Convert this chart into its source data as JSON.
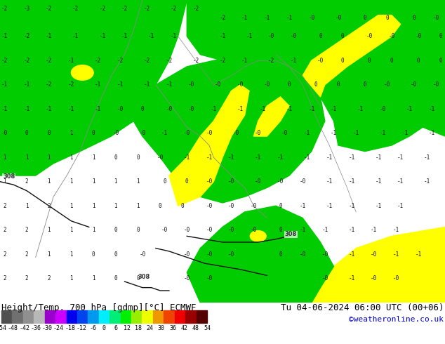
{
  "title_left": "Height/Temp. 700 hPa [gdmp][°C] ECMWF",
  "title_right": "Tu 04-06-2024 06:00 UTC (00+06)",
  "credit": "©weatheronline.co.uk",
  "colorbar_ticks": [
    -54,
    -48,
    -42,
    -36,
    -30,
    -24,
    -18,
    -12,
    -6,
    0,
    6,
    12,
    18,
    24,
    30,
    36,
    42,
    48,
    54
  ],
  "colorbar_colors": [
    "#505050",
    "#707070",
    "#909090",
    "#b8b8b8",
    "#9900cc",
    "#cc00ff",
    "#0000ee",
    "#0044ee",
    "#0099ee",
    "#00eeff",
    "#00ee77",
    "#00ee00",
    "#99ee00",
    "#eeff00",
    "#ee9900",
    "#ee4400",
    "#ee0000",
    "#990000",
    "#550000"
  ],
  "map_bg_yellow": "#ffff00",
  "map_bg_green": "#00dd00",
  "map_bg_lime": "#aaee00",
  "contour_color_gray": "#aaaaaa",
  "contour_color_black": "#111111",
  "text_color": "#111111",
  "text_color_right": "#000000",
  "credit_color": "#0000cc",
  "figsize": [
    6.34,
    4.9
  ],
  "dpi": 100,
  "title_fontsize": 9,
  "credit_fontsize": 8,
  "colorbar_label_fontsize": 6
}
